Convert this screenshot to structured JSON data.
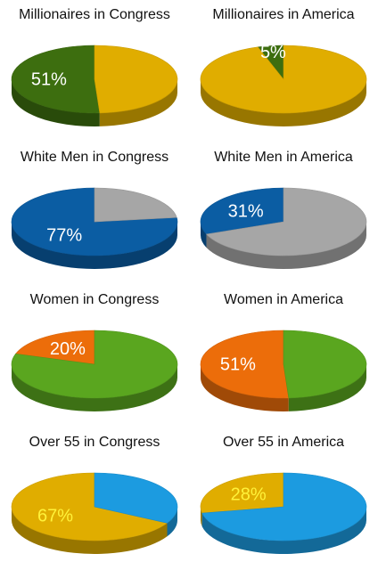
{
  "chart_data": [
    {
      "type": "pie",
      "title": "Millionaires in Congress",
      "label": "51%",
      "values": [
        51,
        49
      ],
      "colors": [
        "#3d6e0f",
        "#e0ad00"
      ],
      "label_color": "#ffffff"
    },
    {
      "type": "pie",
      "title": "Millionaires in America",
      "label": "5%",
      "values": [
        5,
        95
      ],
      "colors": [
        "#3d6e0f",
        "#e0ad00"
      ],
      "label_color": "#ffffff"
    },
    {
      "type": "pie",
      "title": "White Men in Congress",
      "label": "77%",
      "values": [
        77,
        23
      ],
      "colors": [
        "#0b5da3",
        "#a6a6a6"
      ],
      "label_color": "#ffffff"
    },
    {
      "type": "pie",
      "title": "White Men in America",
      "label": "31%",
      "values": [
        31,
        69
      ],
      "colors": [
        "#0b5da3",
        "#a6a6a6"
      ],
      "label_color": "#ffffff"
    },
    {
      "type": "pie",
      "title": "Women in Congress",
      "label": "20%",
      "values": [
        20,
        80
      ],
      "colors": [
        "#ec6d0a",
        "#5aa61f"
      ],
      "label_color": "#ffffff"
    },
    {
      "type": "pie",
      "title": "Women in America",
      "label": "51%",
      "values": [
        51,
        49
      ],
      "colors": [
        "#ec6d0a",
        "#5aa61f"
      ],
      "label_color": "#ffffff"
    },
    {
      "type": "pie",
      "title": "Over 55 in Congress",
      "label": "67%",
      "values": [
        67,
        33
      ],
      "colors": [
        "#e0ad00",
        "#1c9be0"
      ],
      "label_color": "#fff23a"
    },
    {
      "type": "pie",
      "title": "Over 55 in America",
      "label": "28%",
      "values": [
        28,
        72
      ],
      "colors": [
        "#e0ad00",
        "#1c9be0"
      ],
      "label_color": "#fff23a"
    }
  ]
}
